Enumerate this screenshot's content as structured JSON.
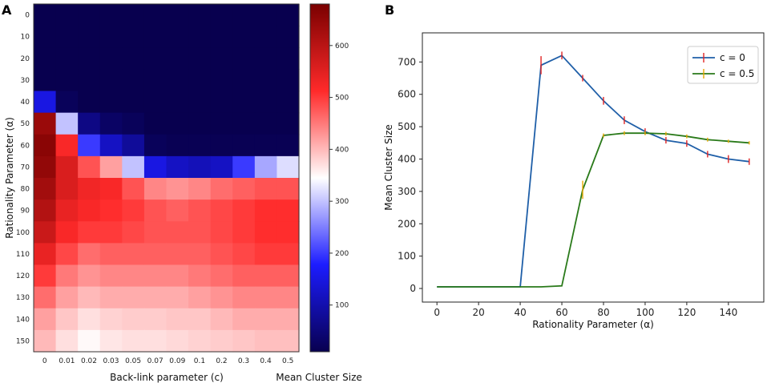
{
  "chart_data": [
    {
      "panel": "A",
      "type": "heatmap",
      "xlabel": "Back-link parameter (c)",
      "ylabel": "Rationality Parameter (α)",
      "x_categories": [
        "0",
        "0.01",
        "0.02",
        "0.03",
        "0.05",
        "0.07",
        "0.09",
        "0.1",
        "0.2",
        "0.3",
        "0.4",
        "0.5"
      ],
      "y_categories": [
        "0",
        "10",
        "20",
        "30",
        "40",
        "50",
        "60",
        "70",
        "80",
        "90",
        "100",
        "110",
        "120",
        "130",
        "140",
        "150"
      ],
      "values": [
        [
          10,
          10,
          10,
          10,
          10,
          10,
          10,
          10,
          10,
          10,
          10,
          10
        ],
        [
          10,
          10,
          10,
          10,
          10,
          10,
          10,
          10,
          10,
          10,
          10,
          10
        ],
        [
          10,
          10,
          10,
          10,
          10,
          10,
          10,
          10,
          10,
          10,
          10,
          10
        ],
        [
          10,
          10,
          10,
          10,
          10,
          10,
          10,
          10,
          10,
          10,
          10,
          10
        ],
        [
          150,
          20,
          10,
          10,
          10,
          10,
          10,
          10,
          10,
          10,
          10,
          10
        ],
        [
          640,
          300,
          60,
          30,
          20,
          10,
          10,
          10,
          10,
          10,
          10,
          10
        ],
        [
          660,
          520,
          200,
          120,
          80,
          20,
          15,
          15,
          15,
          15,
          15,
          15
        ],
        [
          650,
          560,
          480,
          420,
          300,
          150,
          120,
          110,
          120,
          200,
          280,
          320
        ],
        [
          630,
          560,
          530,
          520,
          480,
          440,
          430,
          440,
          460,
          470,
          480,
          480
        ],
        [
          610,
          540,
          520,
          510,
          500,
          480,
          470,
          480,
          490,
          500,
          510,
          510
        ],
        [
          580,
          520,
          500,
          500,
          490,
          480,
          480,
          480,
          490,
          500,
          510,
          510
        ],
        [
          540,
          490,
          460,
          470,
          470,
          470,
          470,
          470,
          480,
          490,
          500,
          500
        ],
        [
          500,
          450,
          430,
          440,
          440,
          440,
          440,
          450,
          460,
          470,
          470,
          470
        ],
        [
          460,
          420,
          400,
          410,
          410,
          410,
          410,
          420,
          430,
          440,
          440,
          440
        ],
        [
          420,
          390,
          370,
          380,
          385,
          385,
          390,
          390,
          400,
          410,
          410,
          410
        ],
        [
          400,
          370,
          350,
          365,
          370,
          370,
          375,
          380,
          385,
          390,
          395,
          395
        ]
      ],
      "colorbar": {
        "label": "Mean Cluster Size",
        "min": 10,
        "max": 680,
        "ticks": [
          100,
          200,
          300,
          400,
          500,
          600
        ],
        "colors": [
          "#08004f",
          "#1c1cff",
          "#ffffff",
          "#ff2a2a",
          "#7a0000"
        ]
      }
    },
    {
      "panel": "B",
      "type": "line",
      "xlabel": "Rationality Parameter (α)",
      "ylabel": "Mean Cluster Size",
      "xlim": [
        -7,
        157
      ],
      "ylim": [
        -42,
        790
      ],
      "xticks": [
        0,
        20,
        40,
        60,
        80,
        100,
        120,
        140
      ],
      "yticks": [
        0,
        100,
        200,
        300,
        400,
        500,
        600,
        700
      ],
      "legend_position": "top-right",
      "x": [
        0,
        10,
        20,
        30,
        40,
        50,
        60,
        70,
        80,
        90,
        100,
        110,
        120,
        130,
        140,
        150
      ],
      "series": [
        {
          "name": "c = 0",
          "color": "#1f5fa8",
          "error_color": "#e02424",
          "values": [
            5,
            5,
            5,
            5,
            5,
            690,
            720,
            650,
            580,
            520,
            485,
            458,
            448,
            415,
            400,
            392
          ],
          "errors": [
            0,
            0,
            0,
            0,
            0,
            28,
            12,
            10,
            12,
            12,
            10,
            10,
            10,
            10,
            12,
            10
          ]
        },
        {
          "name": "c = 0.5",
          "color": "#2a7a1a",
          "error_color": "#e8a800",
          "values": [
            5,
            5,
            5,
            5,
            5,
            5,
            8,
            305,
            473,
            480,
            480,
            478,
            470,
            460,
            455,
            450
          ],
          "errors": [
            0,
            0,
            0,
            0,
            0,
            0,
            0,
            28,
            6,
            6,
            6,
            6,
            6,
            6,
            5,
            5
          ]
        }
      ]
    }
  ]
}
